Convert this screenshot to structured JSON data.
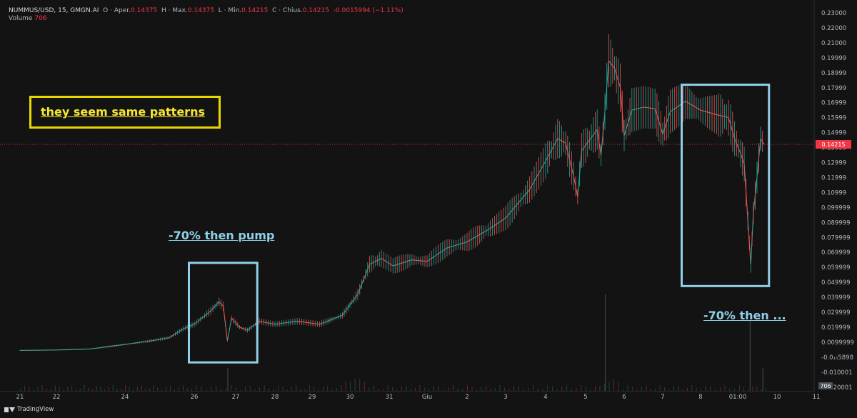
{
  "header": {
    "symbol": "NUMMUS/USD, 15, GMGN.AI",
    "open_label": "O · Aper.",
    "open_value": "0.14375",
    "high_label": "H · Max.",
    "high_value": "0.14375",
    "low_label": "L · Min.",
    "low_value": "0.14215",
    "close_label": "C · Chius.",
    "close_value": "0.14215",
    "change_value": "-0.0015994 (−1.11%)",
    "volume_label": "Volume",
    "volume_value": "706"
  },
  "annotations": {
    "yellow_text": "they seem same patterns",
    "left_text": "-70% then pump",
    "right_text": "-70% then ..."
  },
  "footer": {
    "brand": "TradingView"
  },
  "colors": {
    "background": "#131313",
    "up": "#26a69a",
    "down": "#ef5350",
    "last_price": "#f23645",
    "yellow": "#e8d800",
    "blue": "#8fd0e8"
  },
  "chart_data": {
    "type": "line",
    "title": "NUMMUS/USD, 15, GMGN.AI",
    "y_scale": "log",
    "ylim": [
      -0.01,
      0.23
    ],
    "last_price": 0.14215,
    "last_price_label": "0.14215",
    "volume_label": "706",
    "y_ticks": [
      "0.23000",
      "0.22000",
      "0.21000",
      "0.19999",
      "0.18999",
      "0.17999",
      "0.16999",
      "0.15999",
      "0.14999",
      "0.13999",
      "0.12999",
      "0.11999",
      "0.10999",
      "0.099999",
      "0.089999",
      "0.079999",
      "0.069999",
      "0.059999",
      "0.049999",
      "0.039999",
      "0.029999",
      "0.019999",
      "0.0099999",
      "-0.0₁₅5898",
      "-0.010001",
      "-0.020001"
    ],
    "x_ticks": [
      "21",
      "22",
      "24",
      "26",
      "27",
      "28",
      "29",
      "30",
      "31",
      "Giu",
      "2",
      "3",
      "4",
      "5",
      "6",
      "7",
      "8",
      "01:00",
      "10",
      "11"
    ],
    "price_series": [
      {
        "x": 21.0,
        "y": 0.0045
      },
      {
        "x": 22.0,
        "y": 0.0048
      },
      {
        "x": 23.0,
        "y": 0.0055
      },
      {
        "x": 24.0,
        "y": 0.0085
      },
      {
        "x": 24.8,
        "y": 0.011
      },
      {
        "x": 25.3,
        "y": 0.013
      },
      {
        "x": 25.7,
        "y": 0.019
      },
      {
        "x": 26.0,
        "y": 0.022
      },
      {
        "x": 26.4,
        "y": 0.031
      },
      {
        "x": 26.6,
        "y": 0.037
      },
      {
        "x": 26.7,
        "y": 0.034
      },
      {
        "x": 26.8,
        "y": 0.011
      },
      {
        "x": 26.9,
        "y": 0.026
      },
      {
        "x": 27.1,
        "y": 0.02
      },
      {
        "x": 27.3,
        "y": 0.018
      },
      {
        "x": 27.6,
        "y": 0.024
      },
      {
        "x": 28.0,
        "y": 0.022
      },
      {
        "x": 28.6,
        "y": 0.024
      },
      {
        "x": 29.2,
        "y": 0.022
      },
      {
        "x": 29.8,
        "y": 0.028
      },
      {
        "x": 30.0,
        "y": 0.035
      },
      {
        "x": 30.2,
        "y": 0.042
      },
      {
        "x": 30.5,
        "y": 0.062
      },
      {
        "x": 30.8,
        "y": 0.066
      },
      {
        "x": 31.1,
        "y": 0.061
      },
      {
        "x": 31.6,
        "y": 0.065
      },
      {
        "x": 32.0,
        "y": 0.064
      },
      {
        "x": 32.5,
        "y": 0.073
      },
      {
        "x": 33.0,
        "y": 0.077
      },
      {
        "x": 33.6,
        "y": 0.086
      },
      {
        "x": 34.0,
        "y": 0.093
      },
      {
        "x": 34.6,
        "y": 0.112
      },
      {
        "x": 35.0,
        "y": 0.131
      },
      {
        "x": 35.3,
        "y": 0.146
      },
      {
        "x": 35.5,
        "y": 0.143
      },
      {
        "x": 35.7,
        "y": 0.121
      },
      {
        "x": 35.8,
        "y": 0.107
      },
      {
        "x": 35.9,
        "y": 0.138
      },
      {
        "x": 36.1,
        "y": 0.145
      },
      {
        "x": 36.3,
        "y": 0.152
      },
      {
        "x": 36.4,
        "y": 0.135
      },
      {
        "x": 36.5,
        "y": 0.164
      },
      {
        "x": 36.6,
        "y": 0.198
      },
      {
        "x": 36.75,
        "y": 0.193
      },
      {
        "x": 36.9,
        "y": 0.18
      },
      {
        "x": 37.0,
        "y": 0.148
      },
      {
        "x": 37.2,
        "y": 0.165
      },
      {
        "x": 37.5,
        "y": 0.167
      },
      {
        "x": 37.8,
        "y": 0.166
      },
      {
        "x": 38.0,
        "y": 0.149
      },
      {
        "x": 38.2,
        "y": 0.164
      },
      {
        "x": 38.6,
        "y": 0.171
      },
      {
        "x": 39.0,
        "y": 0.165
      },
      {
        "x": 39.4,
        "y": 0.162
      },
      {
        "x": 39.7,
        "y": 0.16
      },
      {
        "x": 39.85,
        "y": 0.146
      },
      {
        "x": 40.0,
        "y": 0.136
      },
      {
        "x": 40.1,
        "y": 0.129
      },
      {
        "x": 40.2,
        "y": 0.091
      },
      {
        "x": 40.28,
        "y": 0.062
      },
      {
        "x": 40.35,
        "y": 0.096
      },
      {
        "x": 40.45,
        "y": 0.12
      },
      {
        "x": 40.55,
        "y": 0.146
      },
      {
        "x": 40.65,
        "y": 0.142
      }
    ],
    "volume_series": [
      {
        "x": 26.8,
        "y": 706
      },
      {
        "x": 36.5,
        "y": 3000
      },
      {
        "x": 40.25,
        "y": 2200
      },
      {
        "x": 40.6,
        "y": 706
      }
    ],
    "boxes": [
      {
        "x_start": 25.85,
        "x_end": 27.55,
        "y_low": -0.0035,
        "y_high": 0.063
      },
      {
        "x_start": 38.5,
        "x_end": 40.78,
        "y_low": 0.0475,
        "y_high": 0.182
      }
    ]
  }
}
